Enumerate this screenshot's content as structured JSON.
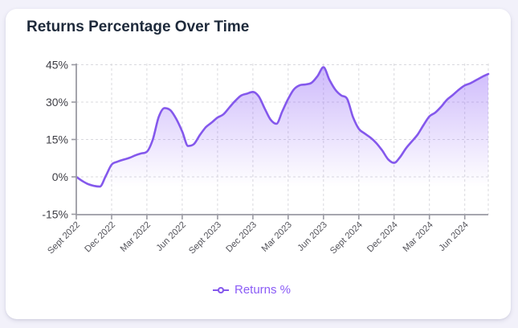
{
  "title": "Returns Percentage Over Time",
  "legend": {
    "label": "Returns %"
  },
  "colors": {
    "page_bg": "#F2F1FA",
    "card_bg": "#FFFFFF",
    "title": "#1E2A3B",
    "line": "#8458EC",
    "legend_text": "#8B5CF6",
    "fill_rgb": "139,92,246",
    "fill_top_alpha": 0.43,
    "grid": "#D9D9DE",
    "axis": "#9A9AA2",
    "y_label": "#3F3F46",
    "x_label": "#55555C"
  },
  "chart_data": {
    "type": "area",
    "title": "Returns Percentage Over Time",
    "unit": "%",
    "ylim": [
      -15,
      45
    ],
    "y_ticks": [
      45,
      30,
      15,
      0,
      -15
    ],
    "y_tick_labels": [
      "45%",
      "30%",
      "15%",
      "0%",
      "-15%"
    ],
    "x_tick_labels": [
      "Sept 2022",
      "Dec 2022",
      "Mar 2022",
      "Jun 2022",
      "Sept 2023",
      "Dec 2023",
      "Mar 2023",
      "Jun 2023",
      "Sept 2024",
      "Dec 2024",
      "Mar 2024",
      "Jun 2024"
    ],
    "x_tick_interval": 6,
    "grid": "dashed",
    "legend_position": "bottom",
    "series": [
      {
        "name": "Returns %",
        "values": [
          0,
          -1.6,
          -2.9,
          -3.6,
          -3.9,
          0.3,
          4.9,
          6.1,
          6.9,
          7.6,
          8.6,
          9.4,
          10.1,
          15,
          24,
          27.6,
          26.7,
          23.2,
          18.2,
          12.4,
          13.2,
          16.8,
          19.9,
          21.8,
          23.8,
          25.1,
          27.8,
          30.5,
          32.6,
          33.4,
          34.1,
          32.3,
          27.5,
          23,
          21.3,
          26.3,
          31.3,
          35.2,
          36.8,
          37.1,
          37.8,
          40.5,
          44,
          39,
          35,
          32.7,
          31.4,
          24.1,
          19.3,
          17.4,
          15.7,
          13.5,
          10.5,
          7,
          5.6,
          7.9,
          11.4,
          14.2,
          17,
          20.8,
          24.3,
          25.8,
          28.2,
          31,
          32.9,
          35,
          36.7,
          37.6,
          38.9,
          40.2,
          41.3
        ]
      }
    ]
  }
}
